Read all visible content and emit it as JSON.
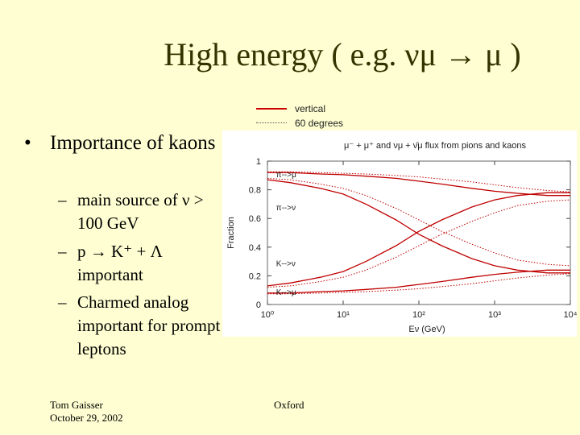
{
  "slide": {
    "title": "High energy ( e.g. νμ → μ )",
    "bullet": "Importance of kaons",
    "sub_bullets": [
      "main source of ν > 100 GeV",
      "p → K⁺ + Λ important",
      "Charmed analog important for prompt leptons"
    ],
    "footer_author": "Tom Gaisser",
    "footer_date": "October 29, 2002",
    "footer_center": "Oxford"
  },
  "chart_data": {
    "type": "line",
    "title": "μ⁻ + μ⁺ and νμ + ν̄μ flux from pions and kaons",
    "xlabel": "Eν (GeV)",
    "ylabel": "Fraction",
    "x_scale": "log",
    "xlim": [
      1,
      10000
    ],
    "ylim": [
      0,
      1
    ],
    "x_ticks": [
      1,
      10,
      100,
      1000,
      10000
    ],
    "x_tick_labels": [
      "10⁰",
      "10¹",
      "10²",
      "10³",
      "10⁴"
    ],
    "y_ticks": [
      0,
      0.2,
      0.4,
      0.6,
      0.8,
      1
    ],
    "y_tick_labels": [
      "0",
      "0.2",
      "0.4",
      "0.6",
      "0.8",
      "1"
    ],
    "legend": [
      {
        "label": "vertical",
        "style": "solid"
      },
      {
        "label": "60 degrees",
        "style": "dotted"
      }
    ],
    "curve_labels": [
      {
        "text": "π-->μ",
        "x": 1.3,
        "y": 0.91
      },
      {
        "text": "π-->ν",
        "x": 1.3,
        "y": 0.68
      },
      {
        "text": "K-->ν",
        "x": 1.3,
        "y": 0.29
      },
      {
        "text": "K-->μ",
        "x": 1.3,
        "y": 0.09
      }
    ],
    "x": [
      1,
      2,
      5,
      10,
      20,
      50,
      100,
      200,
      500,
      1000,
      2000,
      5000,
      10000
    ],
    "series": [
      {
        "name": "π-->μ",
        "style": "solid",
        "color": "#c00000",
        "values": [
          0.92,
          0.92,
          0.91,
          0.905,
          0.895,
          0.88,
          0.86,
          0.84,
          0.81,
          0.79,
          0.775,
          0.76,
          0.76
        ]
      },
      {
        "name": "π-->μ",
        "style": "dotted",
        "color": "#c00000",
        "values": [
          0.925,
          0.925,
          0.92,
          0.915,
          0.91,
          0.9,
          0.89,
          0.875,
          0.855,
          0.835,
          0.815,
          0.795,
          0.785
        ]
      },
      {
        "name": "π-->ν",
        "style": "solid",
        "color": "#c00000",
        "values": [
          0.87,
          0.85,
          0.81,
          0.77,
          0.7,
          0.59,
          0.49,
          0.41,
          0.32,
          0.27,
          0.24,
          0.22,
          0.22
        ]
      },
      {
        "name": "π-->ν",
        "style": "dotted",
        "color": "#c00000",
        "values": [
          0.88,
          0.87,
          0.84,
          0.81,
          0.76,
          0.67,
          0.59,
          0.51,
          0.42,
          0.36,
          0.31,
          0.28,
          0.27
        ]
      },
      {
        "name": "K-->ν",
        "style": "solid",
        "color": "#c00000",
        "values": [
          0.13,
          0.15,
          0.19,
          0.23,
          0.3,
          0.41,
          0.51,
          0.59,
          0.68,
          0.73,
          0.76,
          0.78,
          0.78
        ]
      },
      {
        "name": "K-->ν",
        "style": "dotted",
        "color": "#c00000",
        "values": [
          0.12,
          0.13,
          0.16,
          0.19,
          0.24,
          0.33,
          0.41,
          0.49,
          0.58,
          0.64,
          0.69,
          0.72,
          0.73
        ]
      },
      {
        "name": "K-->μ",
        "style": "solid",
        "color": "#c00000",
        "values": [
          0.08,
          0.08,
          0.09,
          0.095,
          0.105,
          0.12,
          0.14,
          0.16,
          0.19,
          0.21,
          0.225,
          0.24,
          0.24
        ]
      },
      {
        "name": "K-->μ",
        "style": "dotted",
        "color": "#c00000",
        "values": [
          0.075,
          0.075,
          0.08,
          0.085,
          0.09,
          0.1,
          0.11,
          0.125,
          0.145,
          0.165,
          0.185,
          0.205,
          0.215
        ]
      }
    ]
  }
}
